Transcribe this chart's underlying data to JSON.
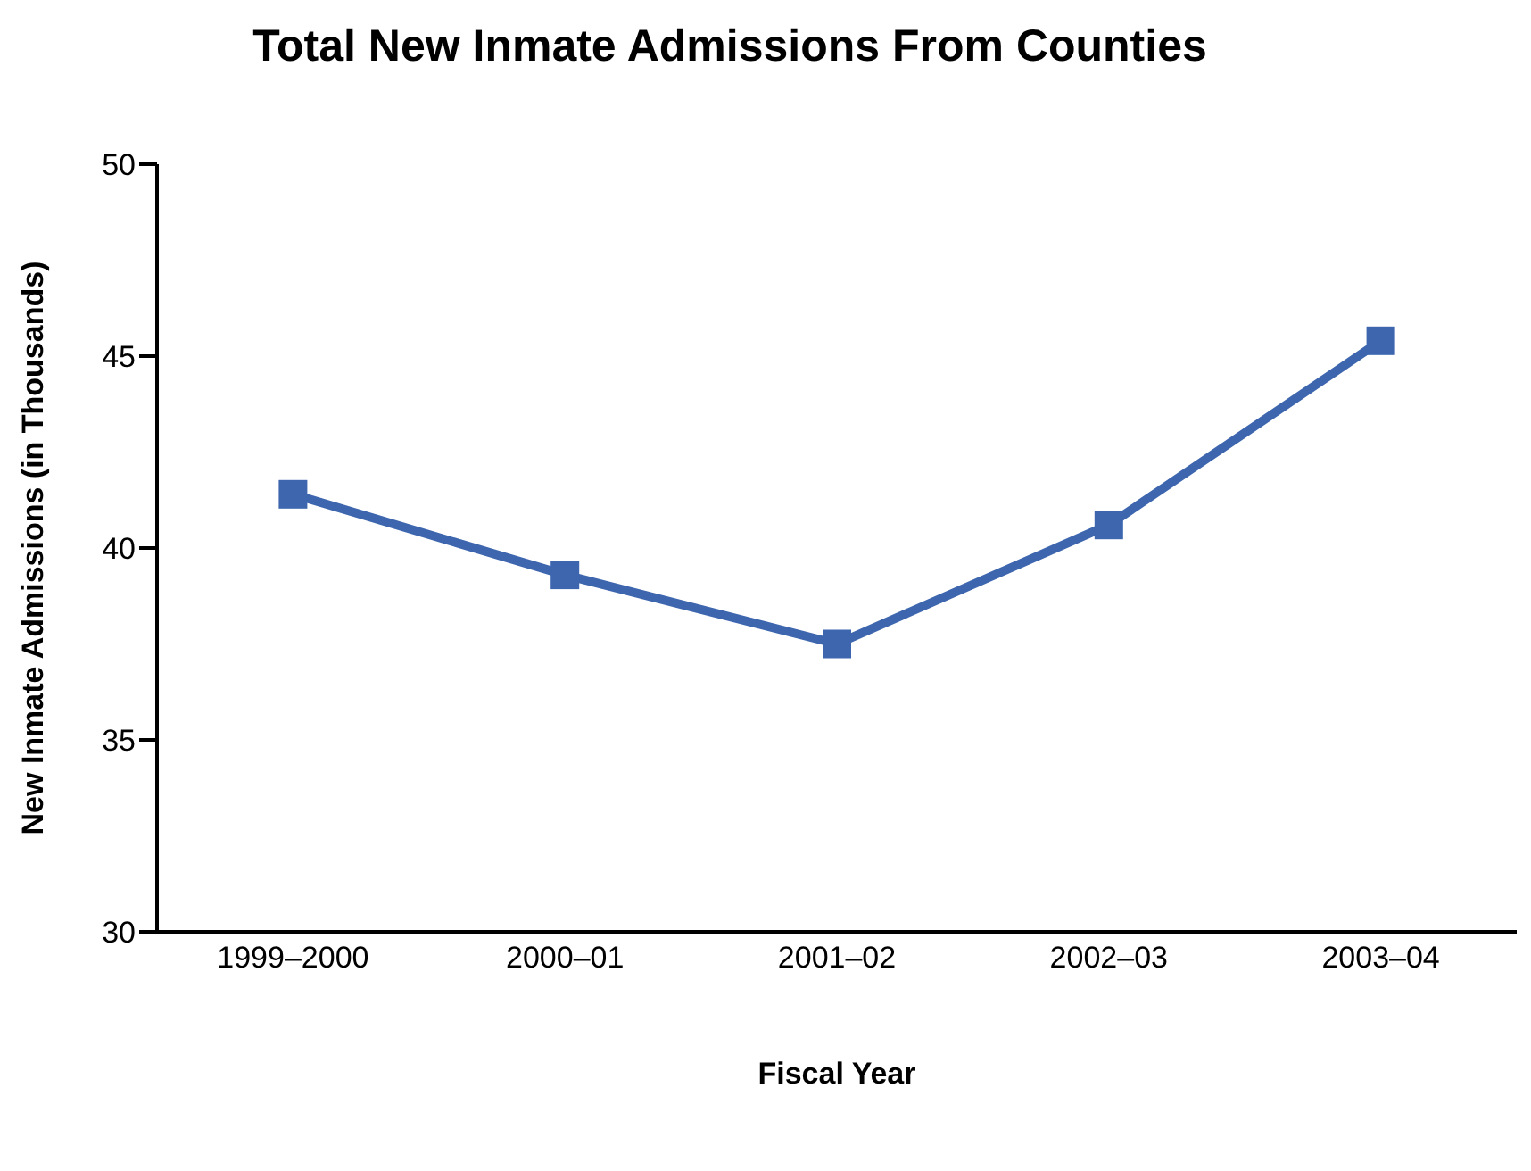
{
  "chart_data": {
    "type": "line",
    "title": "Total New Inmate Admissions From Counties",
    "xlabel": "Fiscal Year",
    "ylabel": "New Inmate Admissions (in Thousands)",
    "categories": [
      "1999–2000",
      "2000–01",
      "2001–02",
      "2002–03",
      "2003–04"
    ],
    "series": [
      {
        "color": "#3d66ae",
        "values": [
          41.4,
          39.3,
          37.5,
          40.6,
          45.4
        ]
      }
    ],
    "ylim": [
      30,
      50
    ],
    "yticks": [
      30,
      35,
      40,
      45,
      50
    ],
    "grid": false,
    "legend": false,
    "marker": "square",
    "line_style": "solid"
  }
}
